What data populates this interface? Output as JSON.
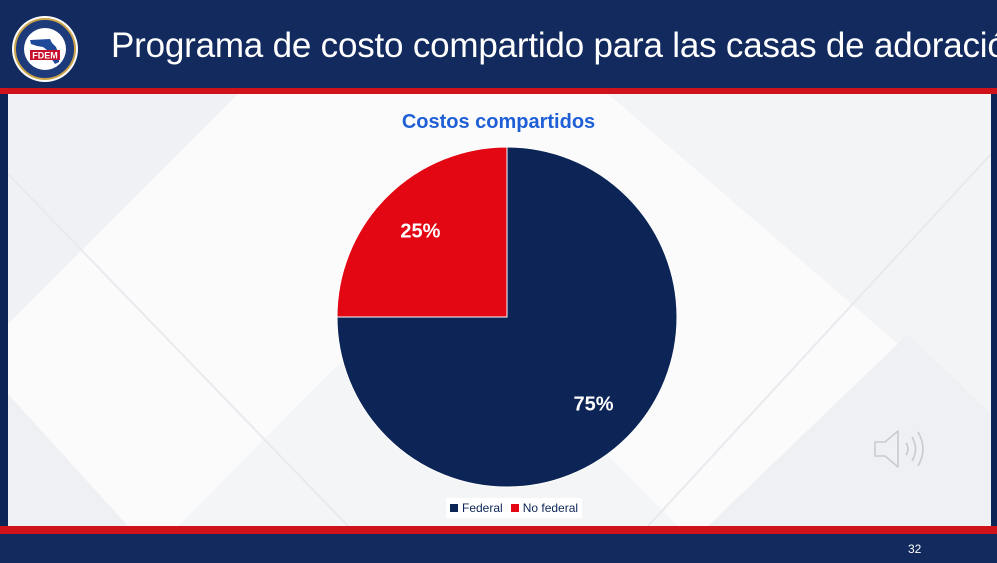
{
  "slide": {
    "title": "Programa de costo compartido para las casas de adoración",
    "logo_text": "FDEM",
    "page_number": "32"
  },
  "colors": {
    "header": "#132a5e",
    "accent_red": "#d0121b",
    "federal": "#0c2556",
    "no_federal": "#e30613",
    "chart_title": "#1f5fd6"
  },
  "icons": {
    "logo": "fdem-seal-icon",
    "audio": "speaker-icon"
  },
  "chart_data": {
    "type": "pie",
    "title": "Costos compartidos",
    "categories": [
      "Federal",
      "No federal"
    ],
    "values": [
      75,
      25
    ],
    "labels": [
      "75%",
      "25%"
    ],
    "colors": [
      "#0c2556",
      "#e30613"
    ],
    "legend": "bottom"
  }
}
